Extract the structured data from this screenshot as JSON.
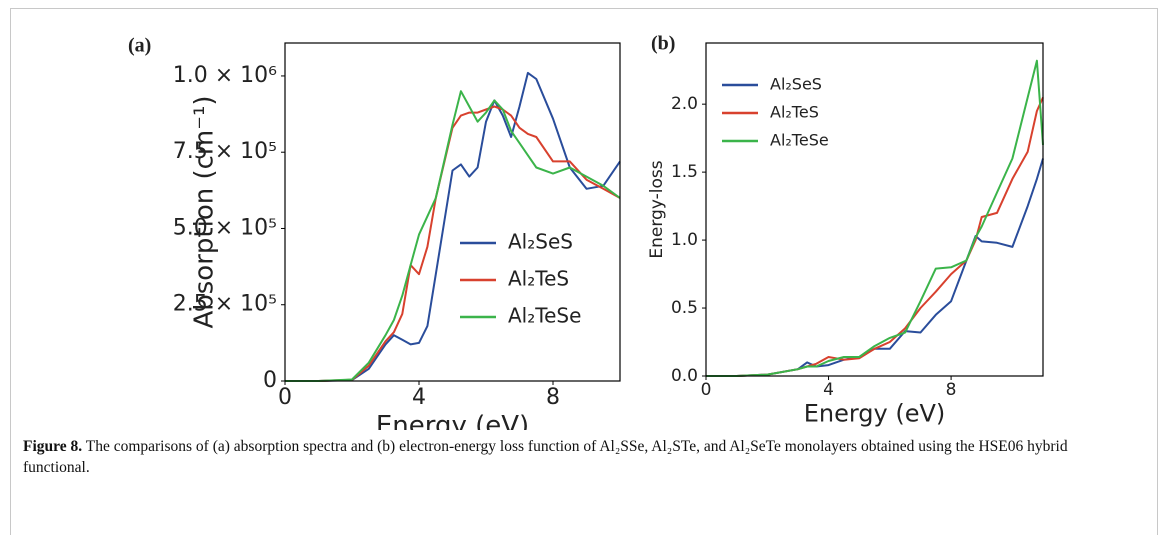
{
  "chart_data": [
    {
      "type": "line",
      "panel_label": "(a)",
      "xlabel": "Energy (eV)",
      "ylabel": "Absorption (cm⁻¹)",
      "x": [
        0,
        1,
        2,
        2.5,
        3,
        3.25,
        3.5,
        3.75,
        4,
        4.25,
        4.5,
        5,
        5.25,
        5.5,
        5.75,
        6,
        6.25,
        6.5,
        6.75,
        7,
        7.25,
        7.5,
        8,
        8.5,
        9,
        9.5,
        10
      ],
      "series": [
        {
          "name": "Al₂SeS",
          "color": "#2a4d9b",
          "values": [
            0,
            0,
            3000,
            40000,
            120000,
            150000,
            135000,
            120000,
            125000,
            180000,
            350000,
            690000,
            710000,
            670000,
            700000,
            850000,
            920000,
            870000,
            800000,
            900000,
            1010000,
            990000,
            860000,
            700000,
            630000,
            640000,
            720000
          ]
        },
        {
          "name": "Al₂TeS",
          "color": "#d8412e",
          "values": [
            0,
            0,
            4000,
            50000,
            130000,
            160000,
            220000,
            380000,
            350000,
            440000,
            600000,
            830000,
            870000,
            880000,
            880000,
            890000,
            900000,
            890000,
            870000,
            830000,
            810000,
            800000,
            720000,
            720000,
            660000,
            630000,
            600000
          ]
        },
        {
          "name": "Al₂TeSe",
          "color": "#3bb44a",
          "values": [
            0,
            0,
            5000,
            60000,
            150000,
            200000,
            280000,
            380000,
            480000,
            540000,
            600000,
            840000,
            950000,
            900000,
            850000,
            880000,
            920000,
            890000,
            820000,
            780000,
            740000,
            700000,
            680000,
            700000,
            670000,
            640000,
            600000
          ]
        }
      ],
      "xlim": [
        0,
        10
      ],
      "xticks": [
        0,
        4,
        8
      ],
      "ylim": [
        0,
        1108000
      ],
      "yticks": [
        0,
        {
          "value": 250000,
          "label": "2.5 × 10⁵"
        },
        {
          "value": 500000,
          "label": "5.0 × 10⁵"
        },
        {
          "value": 750000,
          "label": "7.5 × 10⁵"
        },
        {
          "value": 1000000,
          "label": "1.0 × 10⁶"
        }
      ],
      "legend": "lower right",
      "grid": false
    },
    {
      "type": "line",
      "panel_label": "(b)",
      "xlabel": "Energy (eV)",
      "ylabel": "Energy-loss",
      "x": [
        0,
        1,
        2,
        3,
        3.3,
        3.6,
        4,
        4.5,
        5,
        5.5,
        6,
        6.5,
        7,
        7.5,
        8,
        8.5,
        8.8,
        9,
        9.5,
        10,
        10.5,
        10.8,
        11
      ],
      "series": [
        {
          "name": "Al₂SeS",
          "color": "#2a4d9b",
          "values": [
            0,
            0,
            0.01,
            0.05,
            0.1,
            0.07,
            0.08,
            0.12,
            0.14,
            0.2,
            0.2,
            0.33,
            0.32,
            0.45,
            0.55,
            0.85,
            1.03,
            0.99,
            0.98,
            0.95,
            1.25,
            1.45,
            1.6
          ]
        },
        {
          "name": "Al₂TeS",
          "color": "#d8412e",
          "values": [
            0,
            0,
            0.01,
            0.05,
            0.07,
            0.09,
            0.14,
            0.12,
            0.13,
            0.2,
            0.25,
            0.35,
            0.5,
            0.62,
            0.75,
            0.85,
            1.0,
            1.17,
            1.2,
            1.45,
            1.65,
            1.95,
            2.05
          ]
        },
        {
          "name": "Al₂TeSe",
          "color": "#3bb44a",
          "values": [
            0,
            0,
            0.01,
            0.05,
            0.07,
            0.07,
            0.11,
            0.14,
            0.14,
            0.22,
            0.28,
            0.32,
            0.55,
            0.79,
            0.8,
            0.85,
            1.02,
            1.1,
            1.35,
            1.6,
            2.05,
            2.32,
            1.7
          ]
        }
      ],
      "xlim": [
        0,
        11
      ],
      "xticks": [
        0,
        4,
        8
      ],
      "ylim": [
        0,
        2.45
      ],
      "yticks": [
        {
          "value": 0,
          "label": "0.0"
        },
        0.5,
        {
          "value": 1,
          "label": "1.0"
        },
        1.5,
        {
          "value": 2,
          "label": "2.0"
        }
      ],
      "legend": "upper left",
      "grid": false
    }
  ],
  "caption": {
    "label": "Figure 8.",
    "text": "The comparisons of (a) absorption spectra and (b) electron-energy loss function of Al₂SSe, Al₂STe, and Al₂SeTe monolayers obtained using the HSE06 hybrid functional."
  }
}
